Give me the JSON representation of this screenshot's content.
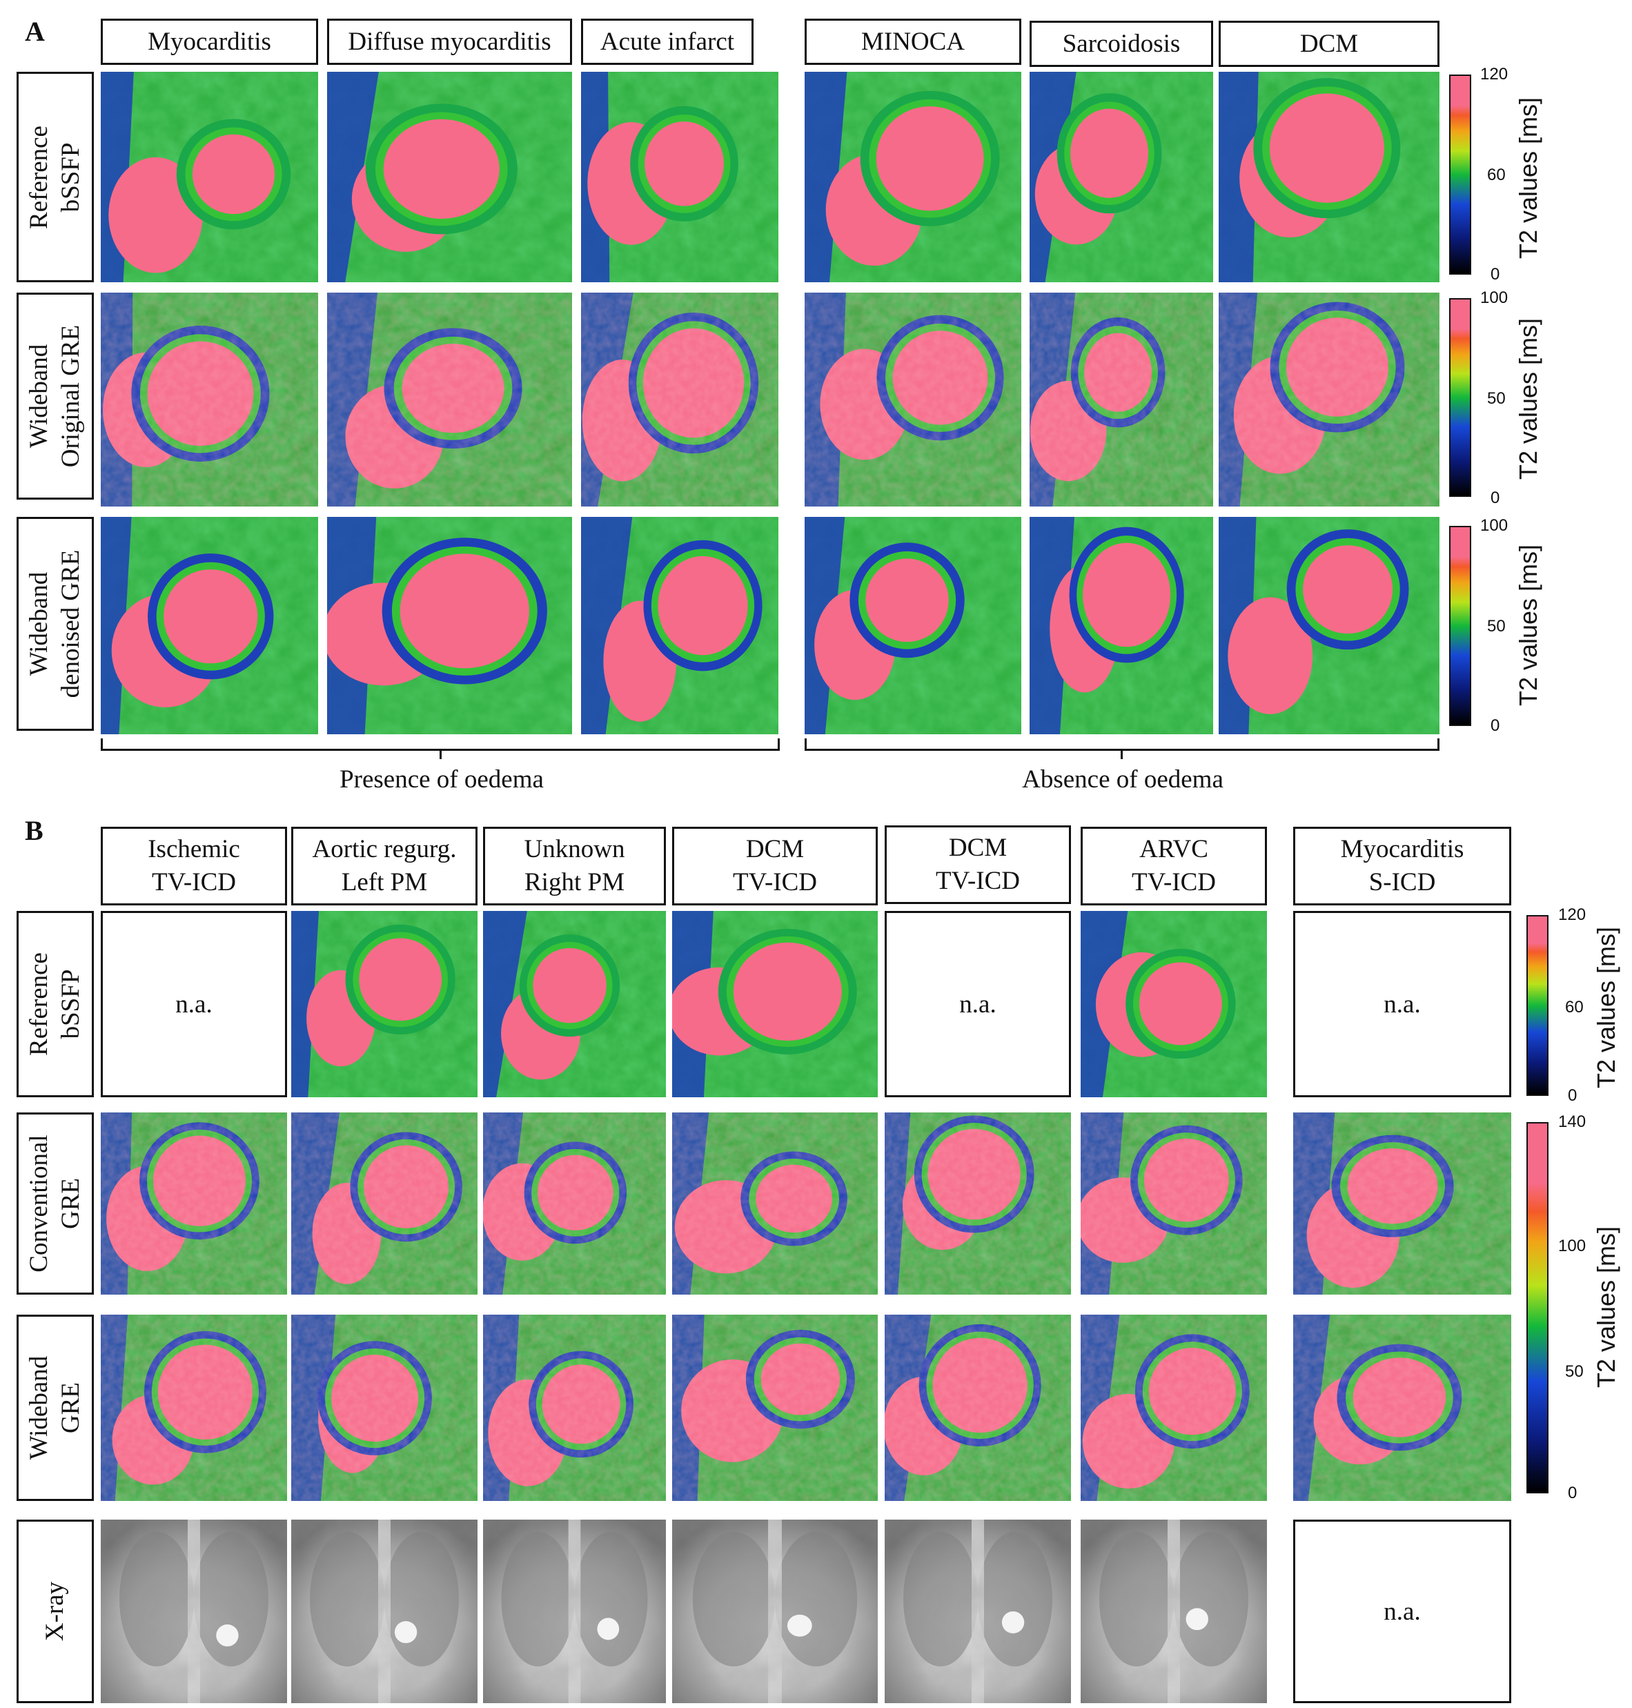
{
  "figure": {
    "panel_a": {
      "letter": "A",
      "columns": [
        "Myocarditis",
        "Diffuse myocarditis",
        "Acute infarct",
        "MINOCA",
        "Sarcoidosis",
        "DCM"
      ],
      "rows": [
        {
          "label": "Reference\nbSSFP",
          "colorbar": {
            "max": "120",
            "mid": "60",
            "min": "0",
            "title": "T2 values [ms]"
          }
        },
        {
          "label": "Wideband\nOriginal GRE",
          "colorbar": {
            "max": "100",
            "mid": "50",
            "min": "0",
            "title": "T2 values [ms]"
          }
        },
        {
          "label": "Wideband\ndenoised GRE",
          "colorbar": {
            "max": "100",
            "mid": "50",
            "min": "0",
            "title": "T2 values [ms]"
          }
        }
      ],
      "groups": [
        "Presence of oedema",
        "Absence of oedema"
      ]
    },
    "panel_b": {
      "letter": "B",
      "columns": [
        "Ischemic\nTV-ICD",
        "Aortic regurg.\nLeft PM",
        "Unknown\nRight PM",
        "DCM\nTV-ICD",
        "DCM\nTV-ICD",
        "ARVC\nTV-ICD",
        "Myocarditis\nS-ICD"
      ],
      "rows": [
        {
          "label": "Reference\nbSSFP",
          "na": [
            true,
            false,
            false,
            false,
            true,
            false,
            true
          ]
        },
        {
          "label": "Conventional\nGRE",
          "na": [
            false,
            false,
            false,
            false,
            false,
            false,
            false
          ]
        },
        {
          "label": "Wideband\nGRE",
          "na": [
            false,
            false,
            false,
            false,
            false,
            false,
            false
          ]
        },
        {
          "label": "X-ray",
          "na": [
            false,
            false,
            false,
            false,
            false,
            false,
            true
          ]
        }
      ],
      "na_text": "n.a.",
      "colorbar_1": {
        "max": "120",
        "mid": "60",
        "min": "0",
        "title": "T2 values [ms]"
      },
      "colorbar_2": {
        "t140": "140",
        "t100": "100",
        "t50": "50",
        "t0": "0",
        "title": "T2 values [ms]"
      }
    },
    "colors": {
      "pink": "#f76b8a",
      "green": "#39c431",
      "blue": "#1f3fb8",
      "navy": "#0b1a5c"
    }
  }
}
